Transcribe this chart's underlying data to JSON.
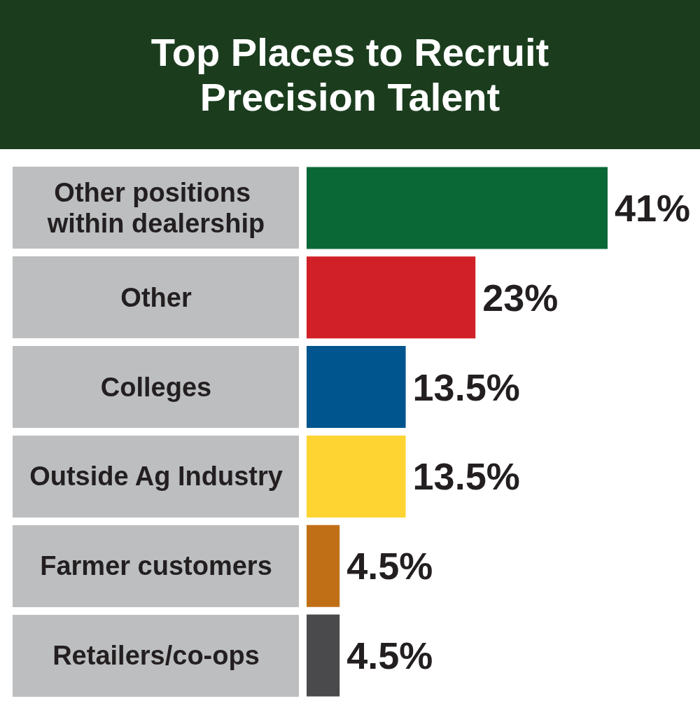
{
  "chart_data": {
    "type": "bar",
    "orientation": "horizontal",
    "title": "Top Places to Recruit Precision Talent",
    "categories": [
      "Other positions within dealership",
      "Other",
      "Colleges",
      "Outside Ag Industry",
      "Farmer customers",
      "Retailers/co-ops"
    ],
    "values": [
      41,
      23,
      13.5,
      13.5,
      4.5,
      4.5
    ],
    "colors": [
      "#0a6837",
      "#d12027",
      "#00558f",
      "#fdd432",
      "#c06f17",
      "#4a4a4c"
    ],
    "value_labels": [
      "41%",
      "23%",
      "13.5%",
      "13.5%",
      "4.5%",
      "4.5%"
    ],
    "tick_labels": "y"
  }
}
